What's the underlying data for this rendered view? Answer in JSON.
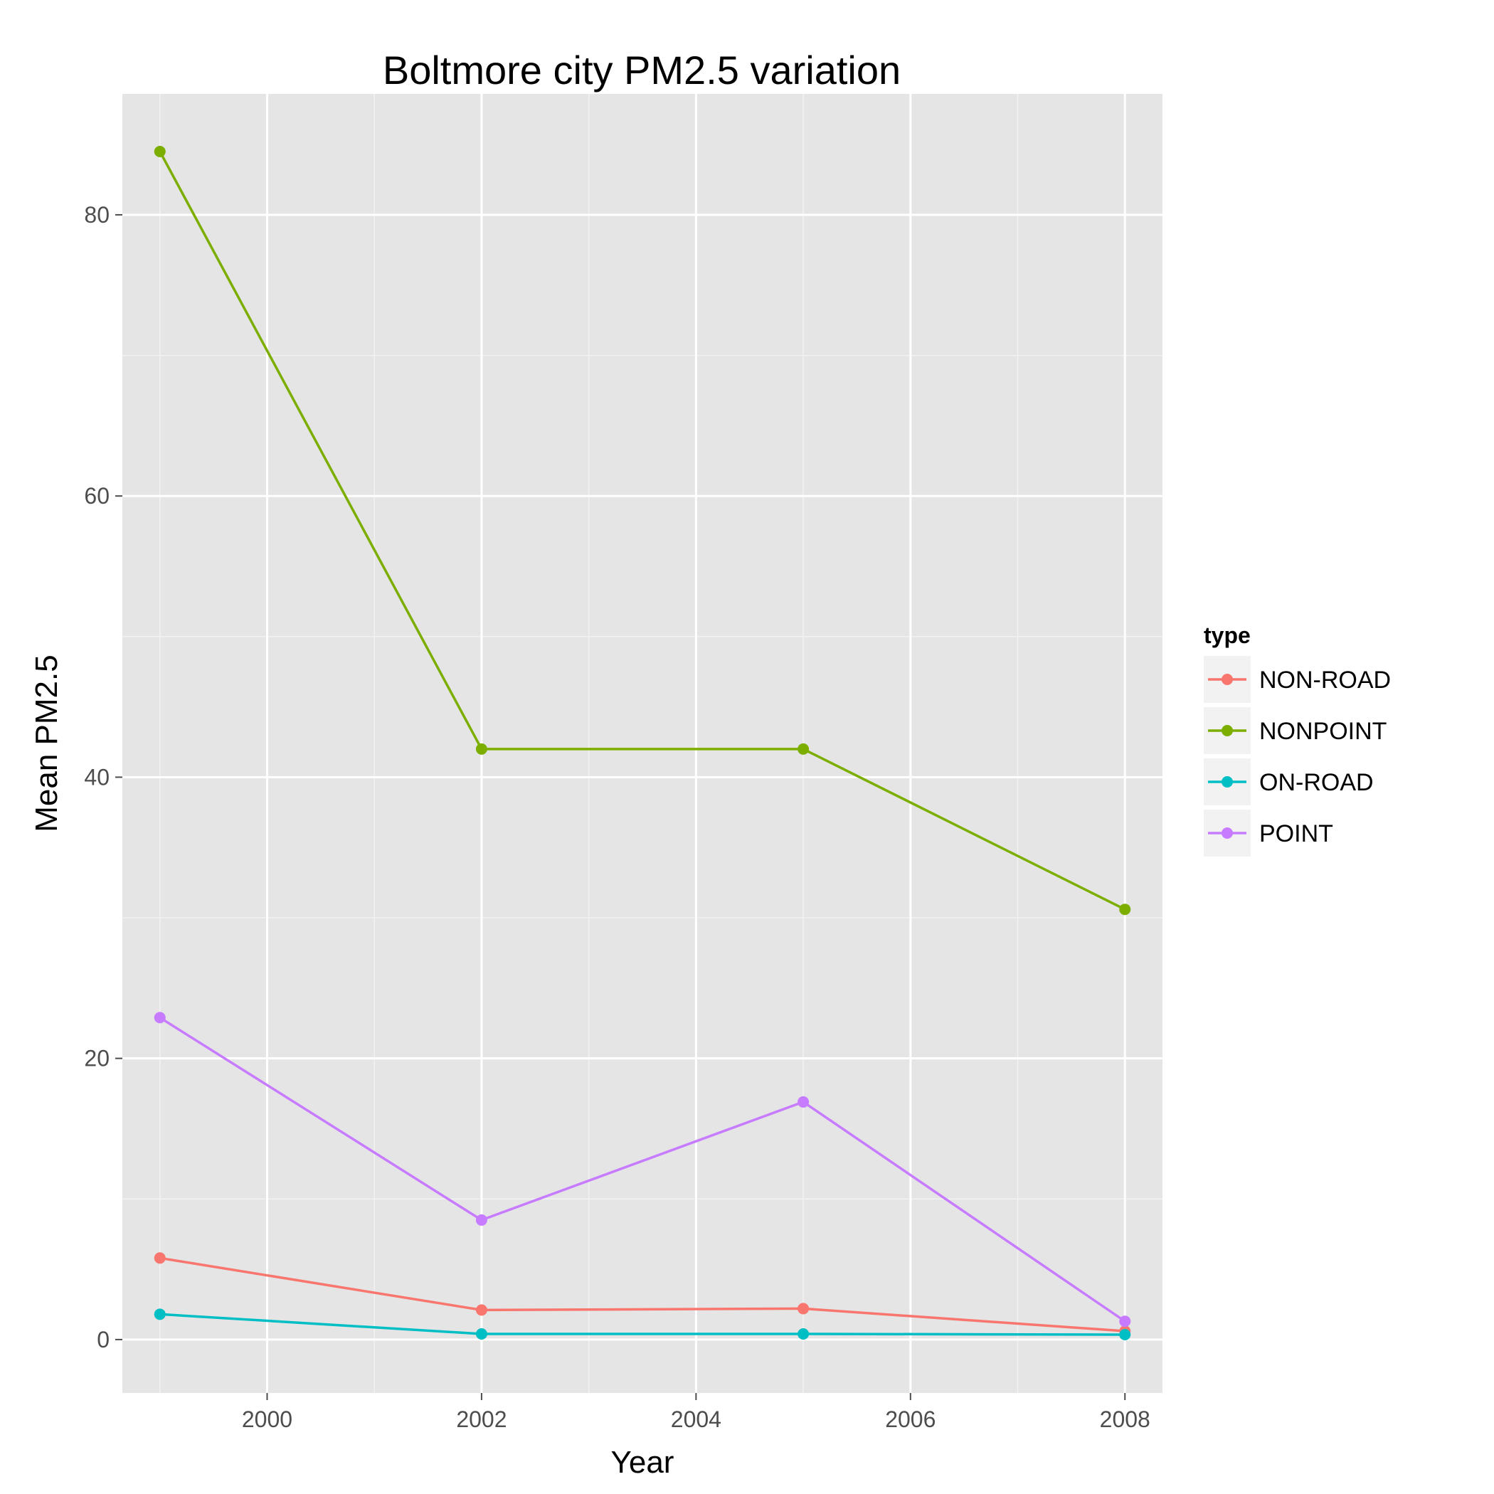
{
  "chart_data": {
    "type": "line",
    "title": "Boltmore city PM2.5 variation",
    "xlabel": "Year",
    "ylabel": "Mean PM2.5",
    "x": [
      1999,
      2002,
      2005,
      2008
    ],
    "xlim": [
      1998.65,
      2008.35
    ],
    "ylim": [
      -3.8,
      88.6
    ],
    "xticks": [
      2000,
      2002,
      2004,
      2006,
      2008
    ],
    "xtick_labels": [
      "2000",
      "2002",
      "2004",
      "2006",
      "2008"
    ],
    "yticks": [
      0,
      20,
      40,
      60,
      80
    ],
    "ytick_labels": [
      "0",
      "20",
      "40",
      "60",
      "80"
    ],
    "grid": true,
    "legend": {
      "title": "type",
      "position": "right"
    },
    "series": [
      {
        "name": "NON-ROAD",
        "color": "#F8766D",
        "values": [
          5.8,
          2.1,
          2.2,
          0.6
        ]
      },
      {
        "name": "NONPOINT",
        "color": "#7CAE00",
        "values": [
          84.5,
          42.0,
          42.0,
          30.6
        ]
      },
      {
        "name": "ON-ROAD",
        "color": "#00BFC4",
        "values": [
          1.8,
          0.4,
          0.4,
          0.35
        ]
      },
      {
        "name": "POINT",
        "color": "#C77CFF",
        "values": [
          22.9,
          8.5,
          16.9,
          1.3
        ]
      }
    ]
  }
}
